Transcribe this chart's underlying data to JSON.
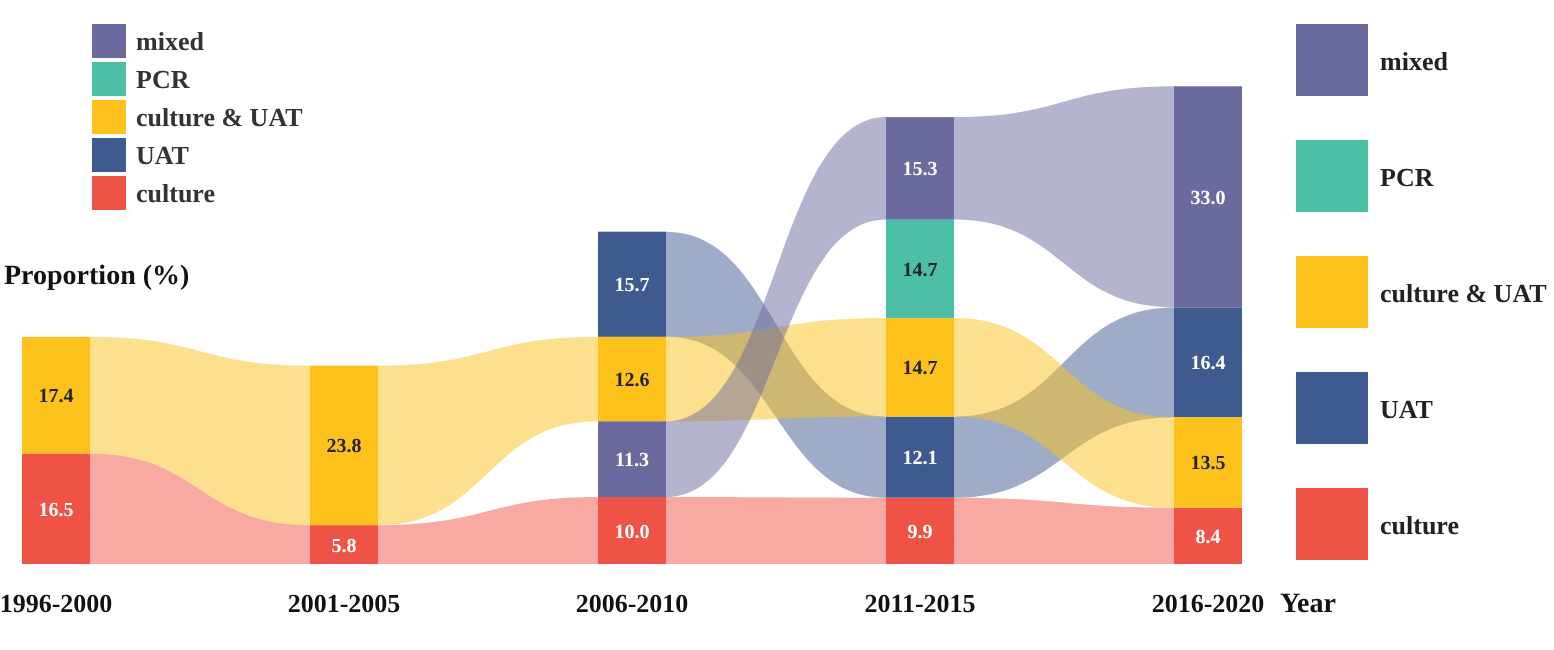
{
  "chart_data": {
    "type": "other",
    "legend": [
      "top left",
      "right"
    ],
    "ylabel": "Proportion (%)",
    "xlabel": "Year",
    "categories": [
      "1996-2000",
      "2001-2005",
      "2006-2010",
      "2011-2015",
      "2016-2020"
    ],
    "series": [
      {
        "name": "culture",
        "color": "#ef5346",
        "values": [
          16.5,
          5.8,
          10.0,
          9.9,
          8.4
        ],
        "value_labels": [
          "16.5",
          "5.8",
          "10.0",
          "9.9",
          "8.4"
        ]
      },
      {
        "name": "UAT",
        "color": "#3f5a8f",
        "values": [
          null,
          null,
          15.7,
          12.1,
          16.4
        ],
        "value_labels": [
          null,
          null,
          "15.7",
          "12.1",
          "16.4"
        ]
      },
      {
        "name": "culture & UAT",
        "color": "#fcc21b",
        "values": [
          17.4,
          23.8,
          12.6,
          14.7,
          13.5
        ],
        "value_labels": [
          "17.4",
          "23.8",
          "12.6",
          "14.7",
          "13.5"
        ]
      },
      {
        "name": "PCR",
        "color": "#4dbfa6",
        "values": [
          null,
          null,
          null,
          14.7,
          null
        ],
        "value_labels": [
          null,
          null,
          null,
          "14.7",
          null
        ]
      },
      {
        "name": "mixed",
        "color": "#6b6a9e",
        "values": [
          null,
          null,
          11.3,
          15.3,
          33.0
        ],
        "value_labels": [
          null,
          null,
          "11.3",
          "15.3",
          "33.0"
        ]
      }
    ]
  }
}
